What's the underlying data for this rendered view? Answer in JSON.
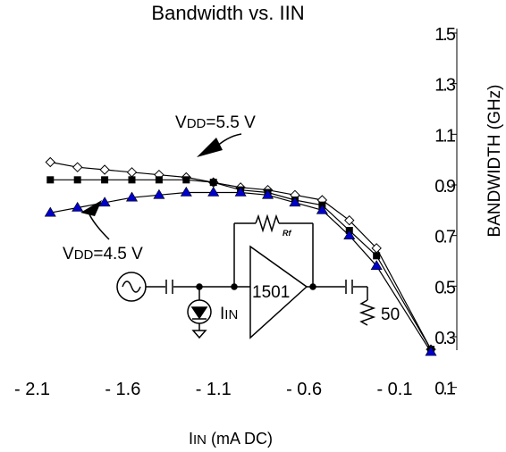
{
  "chart_data": {
    "type": "line",
    "title": "Bandwidth vs. IIN",
    "xlabel": {
      "main": "I",
      "sub": "IN",
      "rest": " (mA DC)"
    },
    "ylabel": "BANDWIDTH (GHz)",
    "xlim": [
      -2.1,
      0.1
    ],
    "ylim": [
      0.0,
      1.5
    ],
    "x_ticks": [
      {
        "value": -2.1,
        "label": "- 2.1"
      },
      {
        "value": -1.6,
        "label": "- 1.6"
      },
      {
        "value": -1.1,
        "label": "- 1.1"
      },
      {
        "value": -0.6,
        "label": "- 0.6"
      },
      {
        "value": -0.1,
        "label": "- 0.1"
      }
    ],
    "y_ticks": [
      {
        "value": 0.1,
        "label": "0.1"
      },
      {
        "value": 0.3,
        "label": "0.3"
      },
      {
        "value": 0.5,
        "label": "0.5"
      },
      {
        "value": 0.7,
        "label": "0.7"
      },
      {
        "value": 0.9,
        "label": "0.9"
      },
      {
        "value": 1.1,
        "label": "1.1"
      },
      {
        "value": 1.3,
        "label": "1.3"
      },
      {
        "value": 1.5,
        "label": "1.5"
      }
    ],
    "x": [
      -2.0,
      -1.85,
      -1.7,
      -1.55,
      -1.4,
      -1.25,
      -1.1,
      -0.95,
      -0.8,
      -0.65,
      -0.5,
      -0.35,
      -0.2,
      0.1
    ],
    "series": [
      {
        "marker": "diamond-open",
        "color": "#000000",
        "values": [
          0.99,
          0.97,
          0.96,
          0.95,
          0.94,
          0.93,
          0.91,
          0.89,
          0.88,
          0.86,
          0.84,
          0.76,
          0.65,
          0.25
        ]
      },
      {
        "marker": "square",
        "color": "#000000",
        "values": [
          0.92,
          0.92,
          0.92,
          0.92,
          0.92,
          0.92,
          0.91,
          0.88,
          0.87,
          0.84,
          0.82,
          0.72,
          0.62,
          0.25
        ]
      },
      {
        "marker": "triangle",
        "color": "#0000cc",
        "values": [
          0.79,
          0.81,
          0.83,
          0.85,
          0.86,
          0.87,
          0.87,
          0.87,
          0.86,
          0.83,
          0.8,
          0.7,
          0.58,
          0.24
        ]
      }
    ],
    "annotations": [
      {
        "id": "vdd-high",
        "main": "V",
        "sub": "DD",
        "rest": "=5.5 V"
      },
      {
        "id": "vdd-low",
        "main": "V",
        "sub": "DD",
        "rest": "=4.5 V"
      }
    ],
    "inset_circuit": {
      "opamp_label": "1501",
      "feedback_label": "Rf",
      "source_label": {
        "main": "I",
        "sub": "IN"
      },
      "load_label": "50"
    },
    "grid": false,
    "legend": "none"
  }
}
